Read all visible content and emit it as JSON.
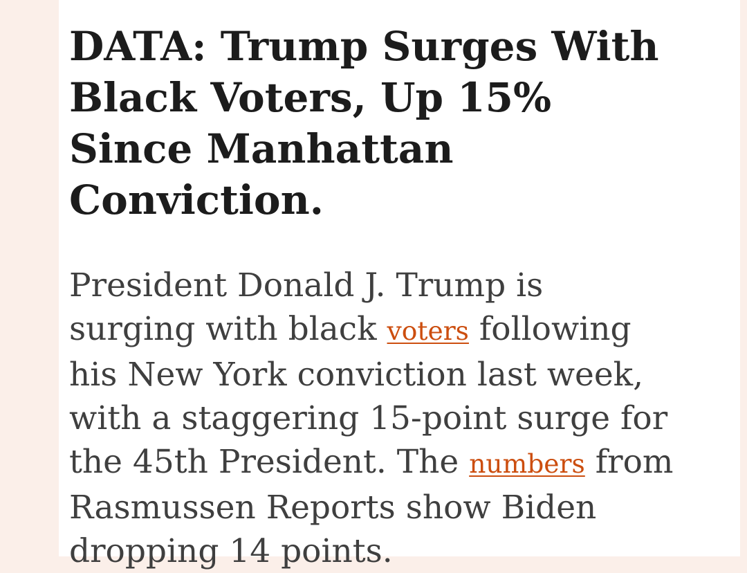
{
  "page": {
    "background_color": "#fbefe9",
    "card_background": "#ffffff",
    "link_color": "#cc4e0f"
  },
  "article": {
    "headline": "DATA: Trump Surges With Black Voters, Up 15% Since Manhattan Conviction.",
    "paragraph": {
      "segments": [
        {
          "type": "text",
          "text": "President Donald J. Trump is surging with black "
        },
        {
          "type": "link",
          "text": "voters"
        },
        {
          "type": "text",
          "text": " following his New York conviction last week, with a staggering 15-point surge for the 45th President. The "
        },
        {
          "type": "link",
          "text": "numbers"
        },
        {
          "type": "text",
          "text": " from Rasmussen Reports show Biden dropping 14 points."
        }
      ]
    }
  }
}
